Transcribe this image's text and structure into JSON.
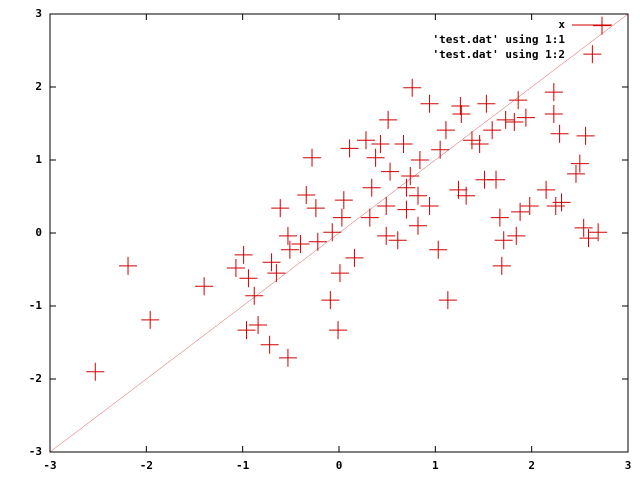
{
  "chart_data": {
    "type": "scatter",
    "xlim": [
      -3,
      3
    ],
    "ylim": [
      -3,
      3
    ],
    "xticks": [
      -3,
      -2,
      -1,
      0,
      1,
      2,
      3
    ],
    "yticks": [
      -3,
      -2,
      -1,
      0,
      1,
      2,
      3
    ],
    "legend": "upper right",
    "series": [
      {
        "name": "x",
        "color": "#d00000",
        "style": "line",
        "x": [
          -3,
          3
        ],
        "values": [
          -3,
          3
        ]
      },
      {
        "name": "'test.dat' using 1:1",
        "color": "#d00000",
        "style": "points",
        "x": [],
        "values": []
      },
      {
        "name": "'test.dat' using 1:2",
        "color": "#d00000",
        "style": "points",
        "x": [
          -2.53,
          -2.19,
          -1.96,
          -1.4,
          -1.07,
          -0.99,
          -0.94,
          -0.96,
          -0.84,
          -0.88,
          -0.72,
          -0.53,
          -0.7,
          -0.65,
          -0.61,
          -0.53,
          -0.51,
          -0.4,
          -0.34,
          -0.24,
          -0.28,
          -0.22,
          -0.07,
          -0.09,
          -0.01,
          0.01,
          0.05,
          0.03,
          0.11,
          0.16,
          0.28,
          0.32,
          0.34,
          0.38,
          0.43,
          0.49,
          0.49,
          0.51,
          0.53,
          0.61,
          0.67,
          0.7,
          0.7,
          0.74,
          0.76,
          0.82,
          0.84,
          0.82,
          0.94,
          0.94,
          1.03,
          1.05,
          1.11,
          1.13,
          1.24,
          1.26,
          1.27,
          1.32,
          1.38,
          1.46,
          1.51,
          1.53,
          1.59,
          1.63,
          1.67,
          1.69,
          1.71,
          1.73,
          1.82,
          1.84,
          1.86,
          1.88,
          1.94,
          1.98,
          2.15,
          2.23,
          2.23,
          2.25,
          2.29,
          2.31,
          2.46,
          2.5,
          2.54,
          2.56,
          2.59,
          2.63,
          2.69,
          2.73
        ],
        "values": [
          -1.9,
          -0.45,
          -1.19,
          -0.73,
          -0.48,
          -0.3,
          -0.62,
          -1.33,
          -1.26,
          -0.86,
          -1.53,
          -1.71,
          -0.4,
          -0.55,
          0.34,
          -0.04,
          -0.23,
          -0.15,
          0.52,
          0.34,
          1.03,
          -0.12,
          0.01,
          -0.92,
          -1.33,
          -0.55,
          0.45,
          0.21,
          1.16,
          -0.34,
          1.27,
          0.21,
          0.62,
          1.03,
          1.22,
          -0.04,
          0.37,
          1.55,
          0.84,
          -0.1,
          1.22,
          0.62,
          0.32,
          0.78,
          1.99,
          0.51,
          1.0,
          0.1,
          1.77,
          0.37,
          -0.23,
          1.14,
          1.41,
          -0.92,
          0.59,
          1.74,
          1.63,
          0.51,
          1.27,
          1.22,
          0.73,
          1.77,
          1.41,
          0.73,
          0.21,
          -0.45,
          -0.1,
          1.55,
          1.52,
          -0.04,
          1.82,
          0.29,
          1.58,
          0.37,
          0.59,
          1.63,
          1.93,
          0.37,
          1.36,
          0.42,
          0.81,
          0.95,
          0.07,
          1.33,
          -0.07,
          2.45,
          0.01,
          2.84
        ]
      }
    ]
  }
}
